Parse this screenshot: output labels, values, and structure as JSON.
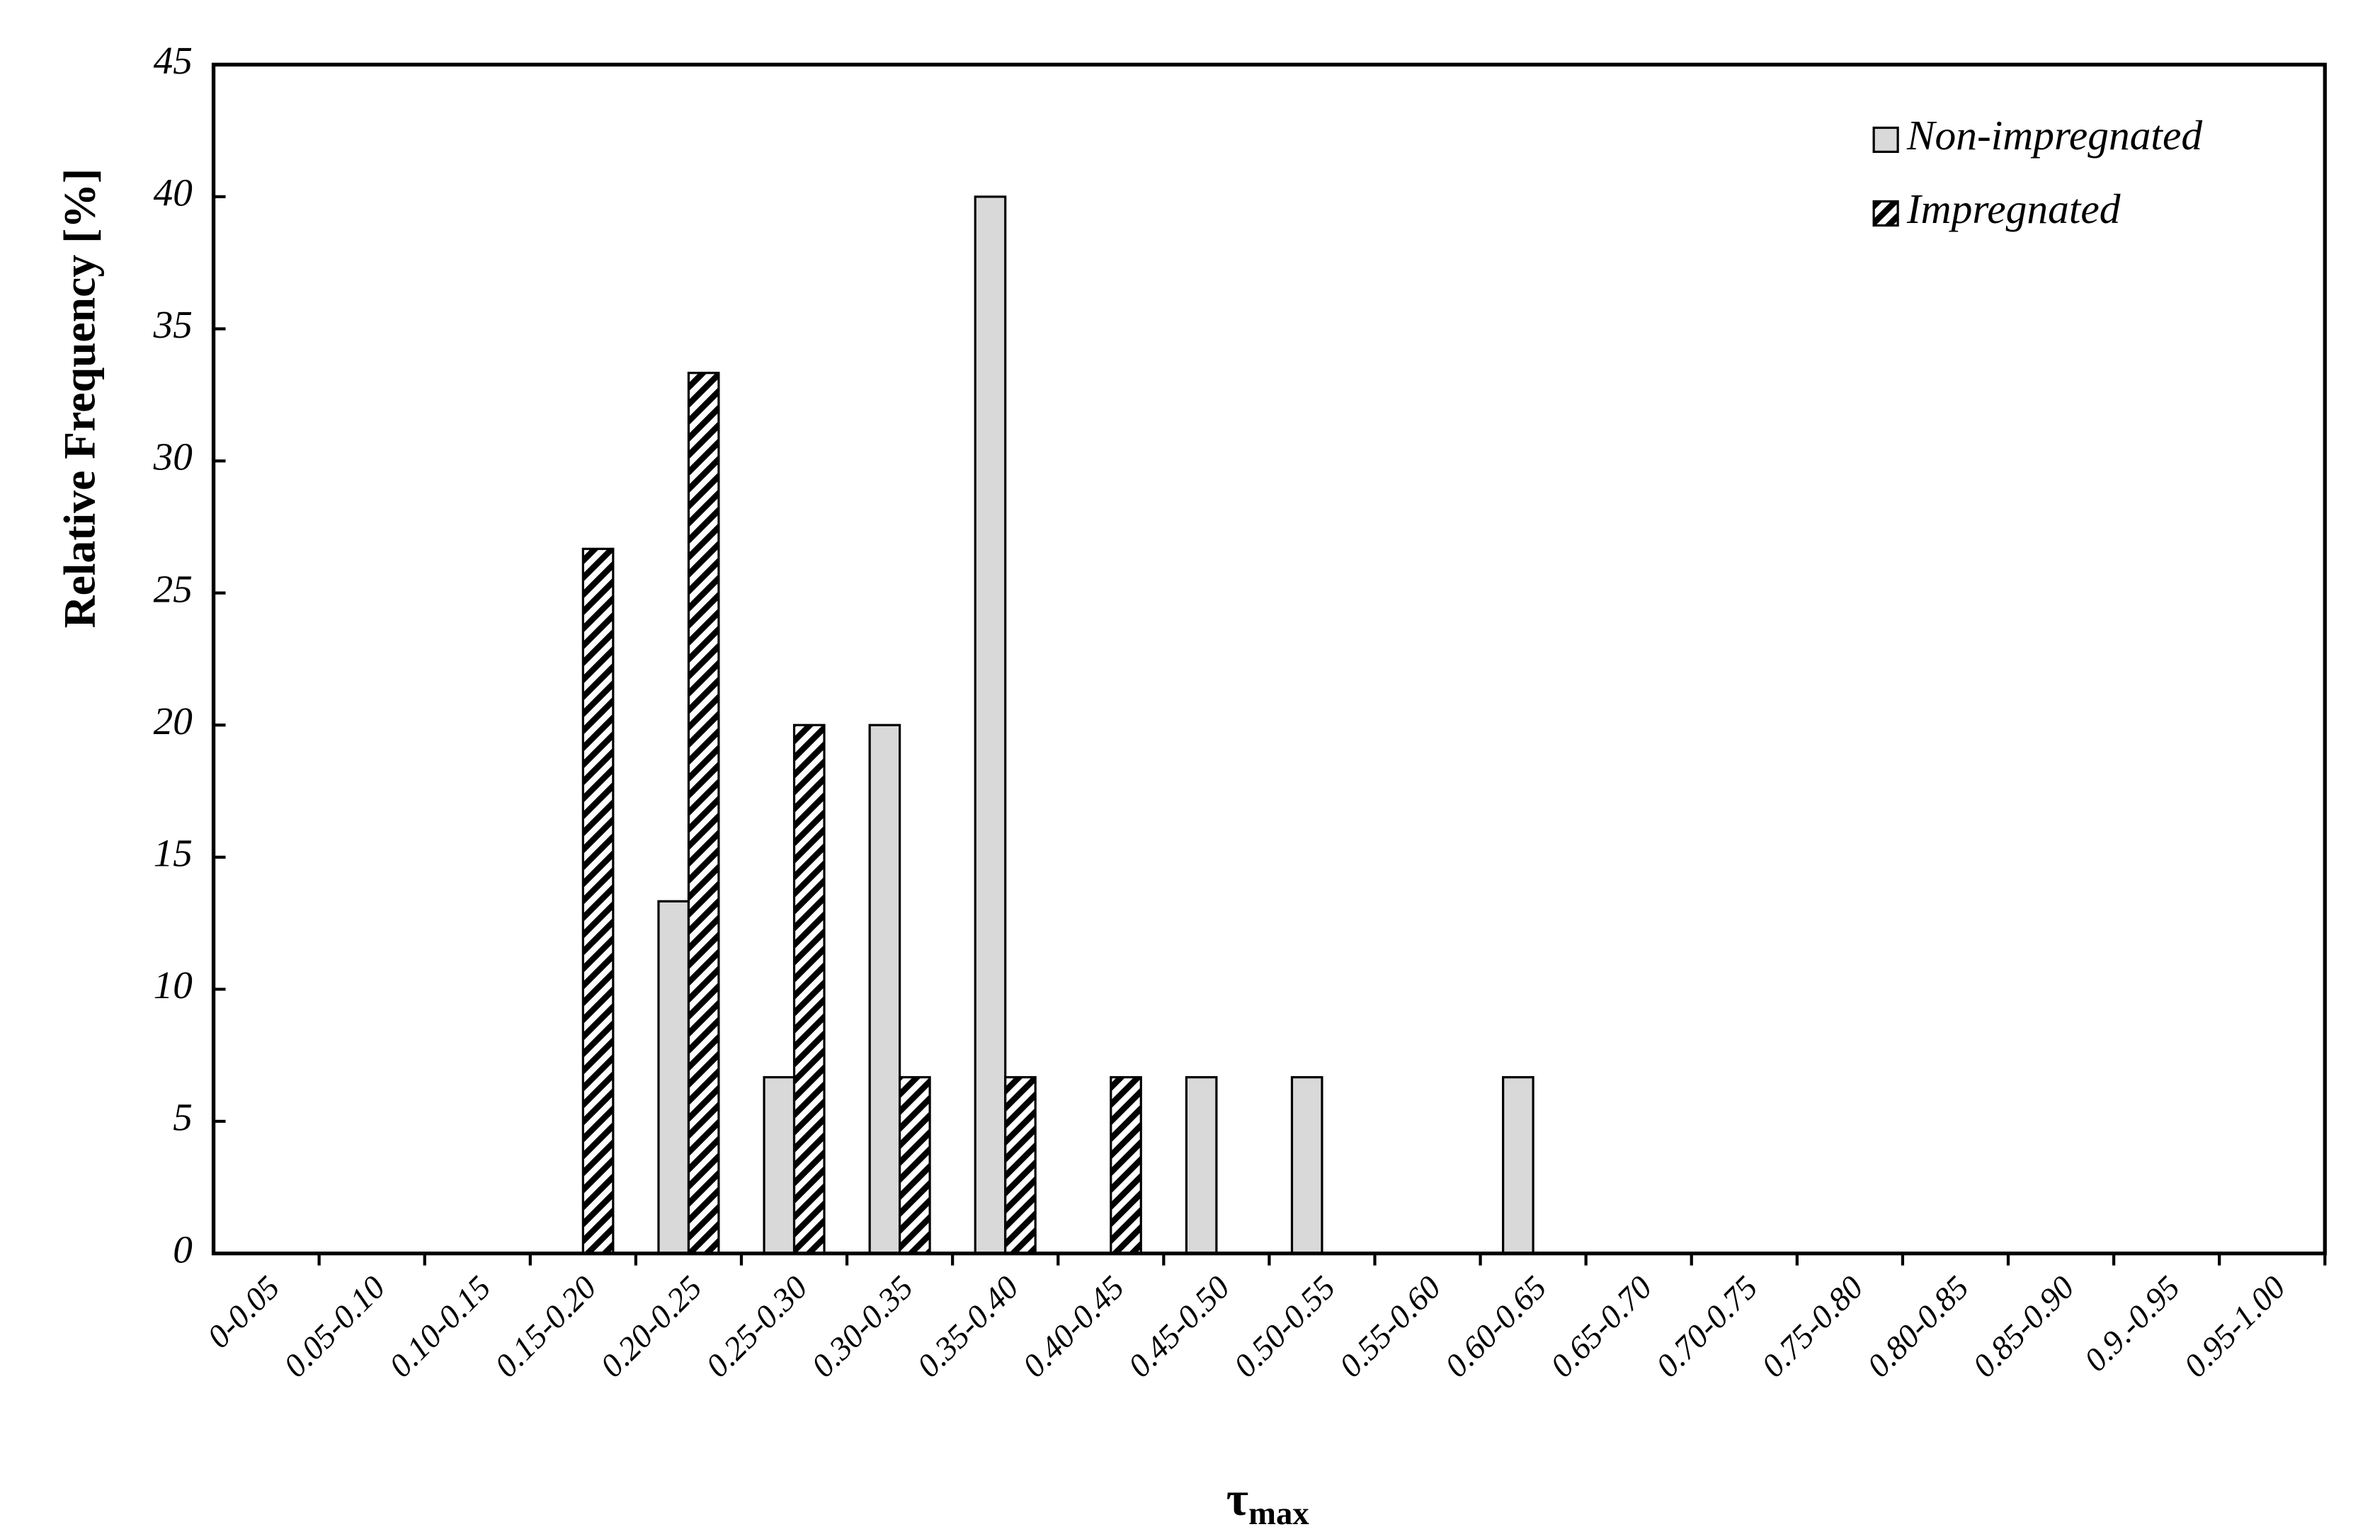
{
  "chart_data": {
    "type": "bar",
    "ylabel": "Relative Frequency [%]",
    "xlabel": {
      "symbol": "τ",
      "subscript": "max"
    },
    "categories": [
      "0-0.05",
      "0.05-0.10",
      "0.10-0.15",
      "0.15-0.20",
      "0.20-0.25",
      "0.25-0.30",
      "0.30-0.35",
      "0.35-0.40",
      "0.40-0.45",
      "0.45-0.50",
      "0.50-0.55",
      "0.55-0.60",
      "0.60-0.65",
      "0.65-0.70",
      "0.70-0.75",
      "0.75-0.80",
      "0.80-0.85",
      "0.85-0.90",
      "0.9.-0.95",
      "0.95-1.00"
    ],
    "series": [
      {
        "name": "Non-impregnated",
        "color": "#d9d9d9",
        "hatch": false,
        "values": [
          0,
          0,
          0,
          0,
          13.33,
          6.67,
          20,
          40,
          0,
          6.67,
          6.67,
          0,
          6.67,
          0,
          0,
          0,
          0,
          0,
          0,
          0
        ]
      },
      {
        "name": "Impregnated",
        "color": "#000000",
        "hatch": true,
        "values": [
          0,
          0,
          0,
          26.67,
          33.33,
          20,
          6.67,
          6.67,
          6.67,
          0,
          0,
          0,
          0,
          0,
          0,
          0,
          0,
          0,
          0,
          0
        ]
      }
    ],
    "ylim": [
      0,
      45
    ],
    "yticks": [
      0,
      5,
      10,
      15,
      20,
      25,
      30,
      35,
      40,
      45
    ],
    "legend": "upper right"
  }
}
